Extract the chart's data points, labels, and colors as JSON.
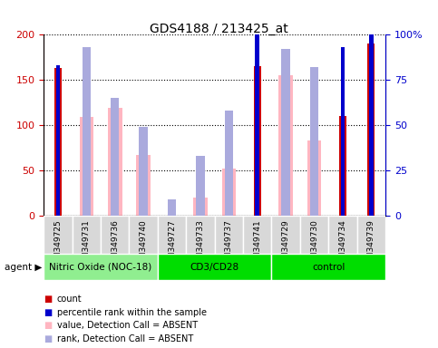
{
  "title": "GDS4188 / 213425_at",
  "samples": [
    "GSM349725",
    "GSM349731",
    "GSM349736",
    "GSM349740",
    "GSM349727",
    "GSM349733",
    "GSM349737",
    "GSM349741",
    "GSM349729",
    "GSM349730",
    "GSM349734",
    "GSM349739"
  ],
  "groups": [
    {
      "label": "Nitric Oxide (NOC-18)",
      "start": 0,
      "end": 4,
      "color": "#90EE90"
    },
    {
      "label": "CD3/CD28",
      "start": 4,
      "end": 8,
      "color": "#00DD00"
    },
    {
      "label": "control",
      "start": 8,
      "end": 12,
      "color": "#00DD00"
    }
  ],
  "count_values": [
    163,
    null,
    null,
    null,
    null,
    null,
    null,
    165,
    null,
    null,
    110,
    190
  ],
  "percentile_values": [
    83,
    null,
    null,
    null,
    null,
    null,
    null,
    115,
    null,
    null,
    93,
    100
  ],
  "absent_value_values": [
    null,
    109,
    119,
    67,
    null,
    20,
    52,
    null,
    155,
    83,
    null,
    null
  ],
  "absent_rank_values": [
    null,
    93,
    65,
    49,
    9,
    33,
    58,
    null,
    92,
    82,
    null,
    null
  ],
  "ylim_left": [
    0,
    200
  ],
  "ylim_right": [
    0,
    100
  ],
  "ylabel_left": "",
  "ylabel_right": "",
  "yticks_left": [
    0,
    50,
    100,
    150,
    200
  ],
  "yticks_right": [
    0,
    25,
    50,
    75,
    100
  ],
  "yticklabels_right": [
    "0",
    "25",
    "50",
    "75",
    "100%"
  ],
  "yticklabels_left": [
    "0",
    "50",
    "100",
    "150",
    "200"
  ],
  "bar_width": 0.25,
  "red_color": "#CC0000",
  "blue_color": "#0000CC",
  "pink_color": "#FFB6C1",
  "light_blue_color": "#AAAADD",
  "grid_color": "#000000",
  "bg_color": "#FFFFFF",
  "tick_label_gray": "#BBBBBB",
  "agent_label": "agent",
  "legend_items": [
    {
      "label": "count",
      "color": "#CC0000",
      "marker": "s"
    },
    {
      "label": "percentile rank within the sample",
      "color": "#0000CC",
      "marker": "s"
    },
    {
      "label": "value, Detection Call = ABSENT",
      "color": "#FFB6C1",
      "marker": "s"
    },
    {
      "label": "rank, Detection Call = ABSENT",
      "color": "#AAAADD",
      "marker": "s"
    }
  ]
}
